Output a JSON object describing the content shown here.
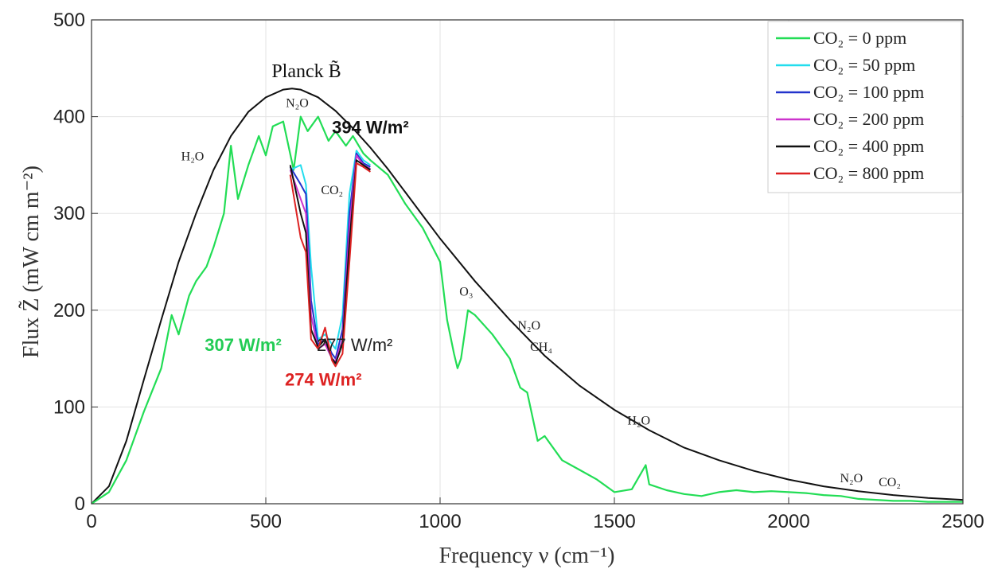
{
  "chart_data": {
    "type": "line",
    "xlabel": "Frequency ν (cm⁻¹)",
    "ylabel": "Flux Z̃ (mW cm m⁻²)",
    "xlim": [
      0,
      2500
    ],
    "ylim": [
      0,
      500
    ],
    "xticks": [
      "0",
      "500",
      "1000",
      "1500",
      "2000",
      "2500"
    ],
    "yticks": [
      "0",
      "100",
      "200",
      "300",
      "400",
      "500"
    ],
    "grid": true,
    "legend_position": "top-right",
    "planck": {
      "label": "Planck B̃",
      "x": [
        0,
        50,
        100,
        150,
        200,
        250,
        300,
        350,
        400,
        450,
        500,
        550,
        575,
        600,
        650,
        700,
        750,
        800,
        850,
        900,
        950,
        1000,
        1100,
        1200,
        1300,
        1400,
        1500,
        1600,
        1700,
        1800,
        1900,
        2000,
        2100,
        2200,
        2300,
        2400,
        2500
      ],
      "y": [
        0,
        18,
        65,
        128,
        190,
        250,
        300,
        345,
        380,
        405,
        420,
        428,
        429,
        428,
        420,
        406,
        388,
        368,
        346,
        322,
        298,
        274,
        230,
        190,
        153,
        122,
        97,
        76,
        58,
        45,
        34,
        25,
        18,
        13,
        9,
        6,
        4
      ]
    },
    "series": [
      {
        "name": "CO₂ = 0 ppm",
        "color": "#22dd55",
        "x": [
          0,
          50,
          100,
          150,
          200,
          230,
          250,
          280,
          300,
          330,
          350,
          380,
          400,
          420,
          450,
          480,
          500,
          520,
          550,
          580,
          600,
          620,
          650,
          680,
          700,
          730,
          750,
          780,
          800,
          850,
          900,
          950,
          1000,
          1020,
          1040,
          1050,
          1060,
          1070,
          1080,
          1100,
          1150,
          1200,
          1230,
          1250,
          1280,
          1300,
          1350,
          1400,
          1450,
          1500,
          1550,
          1590,
          1600,
          1650,
          1700,
          1750,
          1800,
          1850,
          1900,
          1950,
          2000,
          2050,
          2100,
          2150,
          2200,
          2250,
          2300,
          2350,
          2400,
          2450,
          2500
        ],
        "y": [
          0,
          12,
          45,
          95,
          140,
          195,
          175,
          215,
          230,
          245,
          265,
          300,
          370,
          315,
          350,
          380,
          360,
          390,
          395,
          345,
          400,
          385,
          400,
          375,
          385,
          370,
          380,
          362,
          355,
          340,
          310,
          285,
          250,
          190,
          155,
          140,
          150,
          175,
          200,
          195,
          175,
          150,
          120,
          115,
          65,
          70,
          45,
          35,
          25,
          12,
          15,
          40,
          20,
          14,
          10,
          8,
          12,
          14,
          12,
          13,
          12,
          11,
          9,
          8,
          5,
          4,
          3,
          3,
          2,
          2,
          2
        ]
      },
      {
        "name": "CO₂ = 50 ppm",
        "color": "#22ddee",
        "x": [
          570,
          600,
          615,
          630,
          650,
          670,
          690,
          700,
          720,
          740,
          760,
          780,
          800
        ],
        "y": [
          345,
          350,
          330,
          245,
          170,
          175,
          165,
          160,
          195,
          320,
          365,
          355,
          350
        ]
      },
      {
        "name": "CO₂ = 100 ppm",
        "color": "#2233cc",
        "x": [
          570,
          600,
          615,
          630,
          650,
          670,
          690,
          700,
          720,
          740,
          760,
          780,
          800
        ],
        "y": [
          348,
          330,
          320,
          210,
          165,
          170,
          155,
          150,
          180,
          300,
          362,
          352,
          348
        ]
      },
      {
        "name": "CO₂ = 200 ppm",
        "color": "#cc33cc",
        "x": [
          570,
          600,
          615,
          630,
          650,
          670,
          690,
          700,
          720,
          740,
          760,
          780,
          800
        ],
        "y": [
          345,
          315,
          300,
          195,
          160,
          165,
          150,
          147,
          170,
          285,
          360,
          350,
          346
        ]
      },
      {
        "name": "CO₂ = 400 ppm",
        "color": "#111111",
        "x": [
          570,
          600,
          615,
          630,
          650,
          670,
          690,
          700,
          720,
          740,
          760,
          780,
          800
        ],
        "y": [
          350,
          300,
          280,
          180,
          162,
          170,
          150,
          145,
          165,
          270,
          355,
          350,
          345
        ]
      },
      {
        "name": "CO₂ = 800 ppm",
        "color": "#dd2222",
        "x": [
          570,
          600,
          615,
          630,
          650,
          670,
          690,
          700,
          720,
          740,
          760,
          780,
          800
        ],
        "y": [
          340,
          275,
          260,
          170,
          160,
          182,
          148,
          142,
          155,
          250,
          352,
          348,
          343
        ]
      }
    ],
    "annotations": [
      {
        "text": "H₂O",
        "x": 290,
        "y": 355
      },
      {
        "text": "N₂O",
        "x": 590,
        "y": 410
      },
      {
        "text": "CO₂",
        "x": 690,
        "y": 320
      },
      {
        "text": "O₃",
        "x": 1075,
        "y": 215
      },
      {
        "text": "N₂O",
        "x": 1255,
        "y": 180
      },
      {
        "text": "CH₄",
        "x": 1290,
        "y": 158
      },
      {
        "text": "H₂O",
        "x": 1570,
        "y": 82
      },
      {
        "text": "N₂O",
        "x": 2180,
        "y": 22
      },
      {
        "text": "CO₂",
        "x": 2290,
        "y": 18
      }
    ],
    "flux_labels": [
      {
        "text": "394 W/m²",
        "color": "#111111",
        "bold": true,
        "x": 800,
        "y": 383
      },
      {
        "text": "307 W/m²",
        "color": "#22cc55",
        "bold": true,
        "x": 435,
        "y": 158
      },
      {
        "text": "277 W/m²",
        "color": "#222222",
        "bold": false,
        "x": 755,
        "y": 158
      },
      {
        "text": "274 W/m²",
        "color": "#dd2222",
        "bold": true,
        "x": 665,
        "y": 122
      }
    ]
  }
}
